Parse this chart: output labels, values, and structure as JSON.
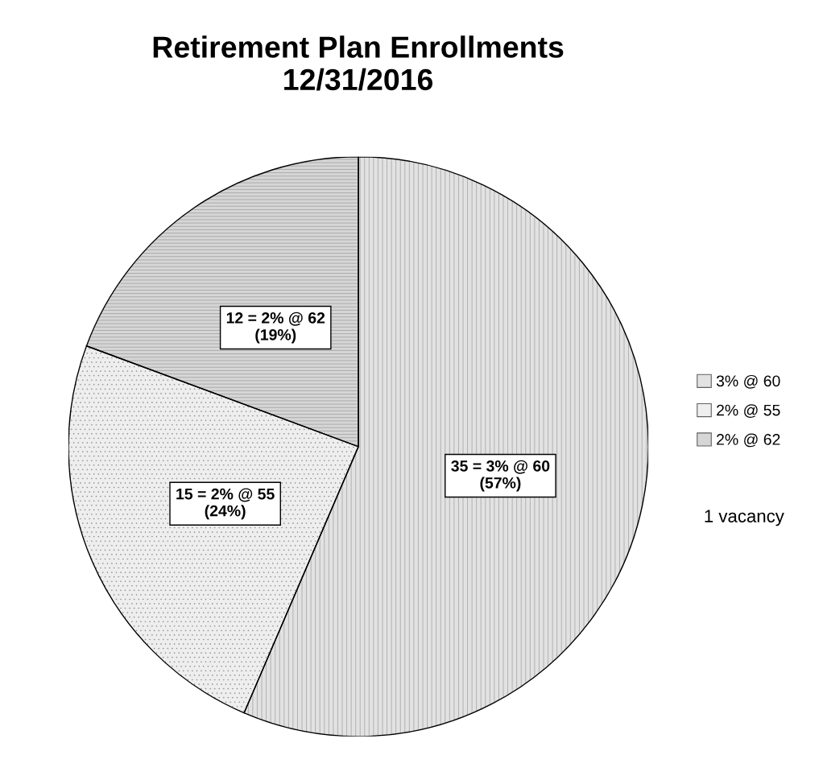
{
  "chart_data": {
    "type": "pie",
    "title": "Retirement Plan Enrollments\n12/31/2016",
    "categories": [
      "3% @ 60",
      "2% @ 55",
      "2% @ 62"
    ],
    "values": [
      35,
      15,
      12
    ],
    "value_labels": [
      "35 = 3% @ 60\n(57%)",
      "15 = 2% @ 55\n(24%)",
      "12 = 2% @ 62\n(19%)"
    ],
    "colors": [
      "#e2e2e2",
      "#eeeeee",
      "#d6d6d6"
    ],
    "legend": "right",
    "annotations": [
      "1 vacancy"
    ]
  }
}
